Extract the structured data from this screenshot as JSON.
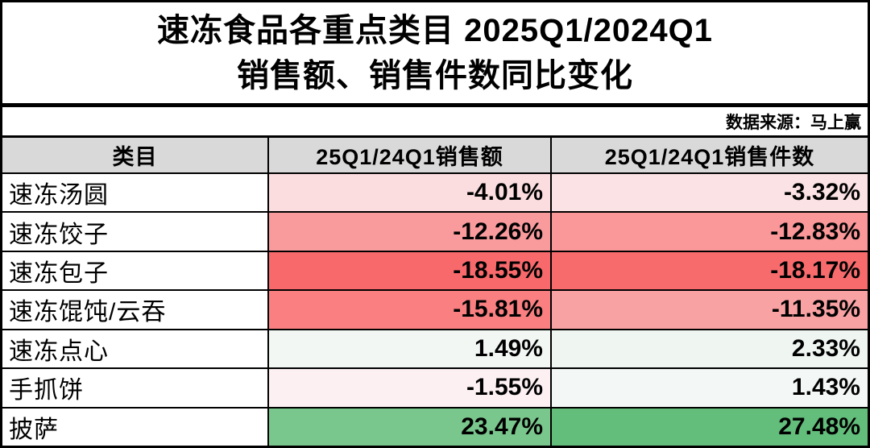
{
  "title": {
    "line1": "速冻食品各重点类目 2025Q1/2024Q1",
    "line2": "销售额、销售件数同比变化"
  },
  "source_label": "数据来源：马上赢",
  "table": {
    "headers": {
      "category": "类目",
      "sales": "25Q1/24Q1销售额",
      "units": "25Q1/24Q1销售件数"
    },
    "header_bg": "#D9D9D9",
    "rows": [
      {
        "category": "速冻汤圆",
        "sales_change": "-4.01%",
        "sales_color": "#FBDCDF",
        "units_change": "-3.32%",
        "units_color": "#FBE2E4"
      },
      {
        "category": "速冻饺子",
        "sales_change": "-12.26%",
        "sales_color": "#F99B9D",
        "units_change": "-12.83%",
        "units_color": "#F99799"
      },
      {
        "category": "速冻包子",
        "sales_change": "-18.55%",
        "sales_color": "#F8696B",
        "units_change": "-18.17%",
        "units_color": "#F86B6D"
      },
      {
        "category": "速冻馄饨/云吞",
        "sales_change": "-15.81%",
        "sales_color": "#F97F81",
        "units_change": "-11.35%",
        "units_color": "#F9A2A4"
      },
      {
        "category": "速冻点心",
        "sales_change": "1.49%",
        "sales_color": "#F2F7F4",
        "units_change": "2.33%",
        "units_color": "#EFF6F2"
      },
      {
        "category": "手抓饼",
        "sales_change": "-1.55%",
        "sales_color": "#FCF0F2",
        "units_change": "1.43%",
        "units_color": "#F3F8F6"
      },
      {
        "category": "披萨",
        "sales_change": "23.47%",
        "sales_color": "#7AC78D",
        "units_change": "27.48%",
        "units_color": "#63BE7B"
      }
    ]
  },
  "chart_data": {
    "type": "table",
    "title": "速冻食品各重点类目 2025Q1/2024Q1 销售额、销售件数同比变化",
    "source": "数据来源：马上赢",
    "categories": [
      "速冻汤圆",
      "速冻饺子",
      "速冻包子",
      "速冻馄饨/云吞",
      "速冻点心",
      "手抓饼",
      "披萨"
    ],
    "series": [
      {
        "name": "25Q1/24Q1销售额",
        "unit": "%",
        "values": [
          -4.01,
          -12.26,
          -18.55,
          -15.81,
          1.49,
          -1.55,
          23.47
        ]
      },
      {
        "name": "25Q1/24Q1销售件数",
        "unit": "%",
        "values": [
          -3.32,
          -12.83,
          -18.17,
          -11.35,
          2.33,
          1.43,
          27.48
        ]
      }
    ],
    "color_scale": {
      "min_color": "#F8696B",
      "mid_color": "#FCFCFF",
      "max_color": "#63BE7B",
      "min_value": -18.55,
      "mid_value": 0,
      "max_value": 27.48
    }
  }
}
